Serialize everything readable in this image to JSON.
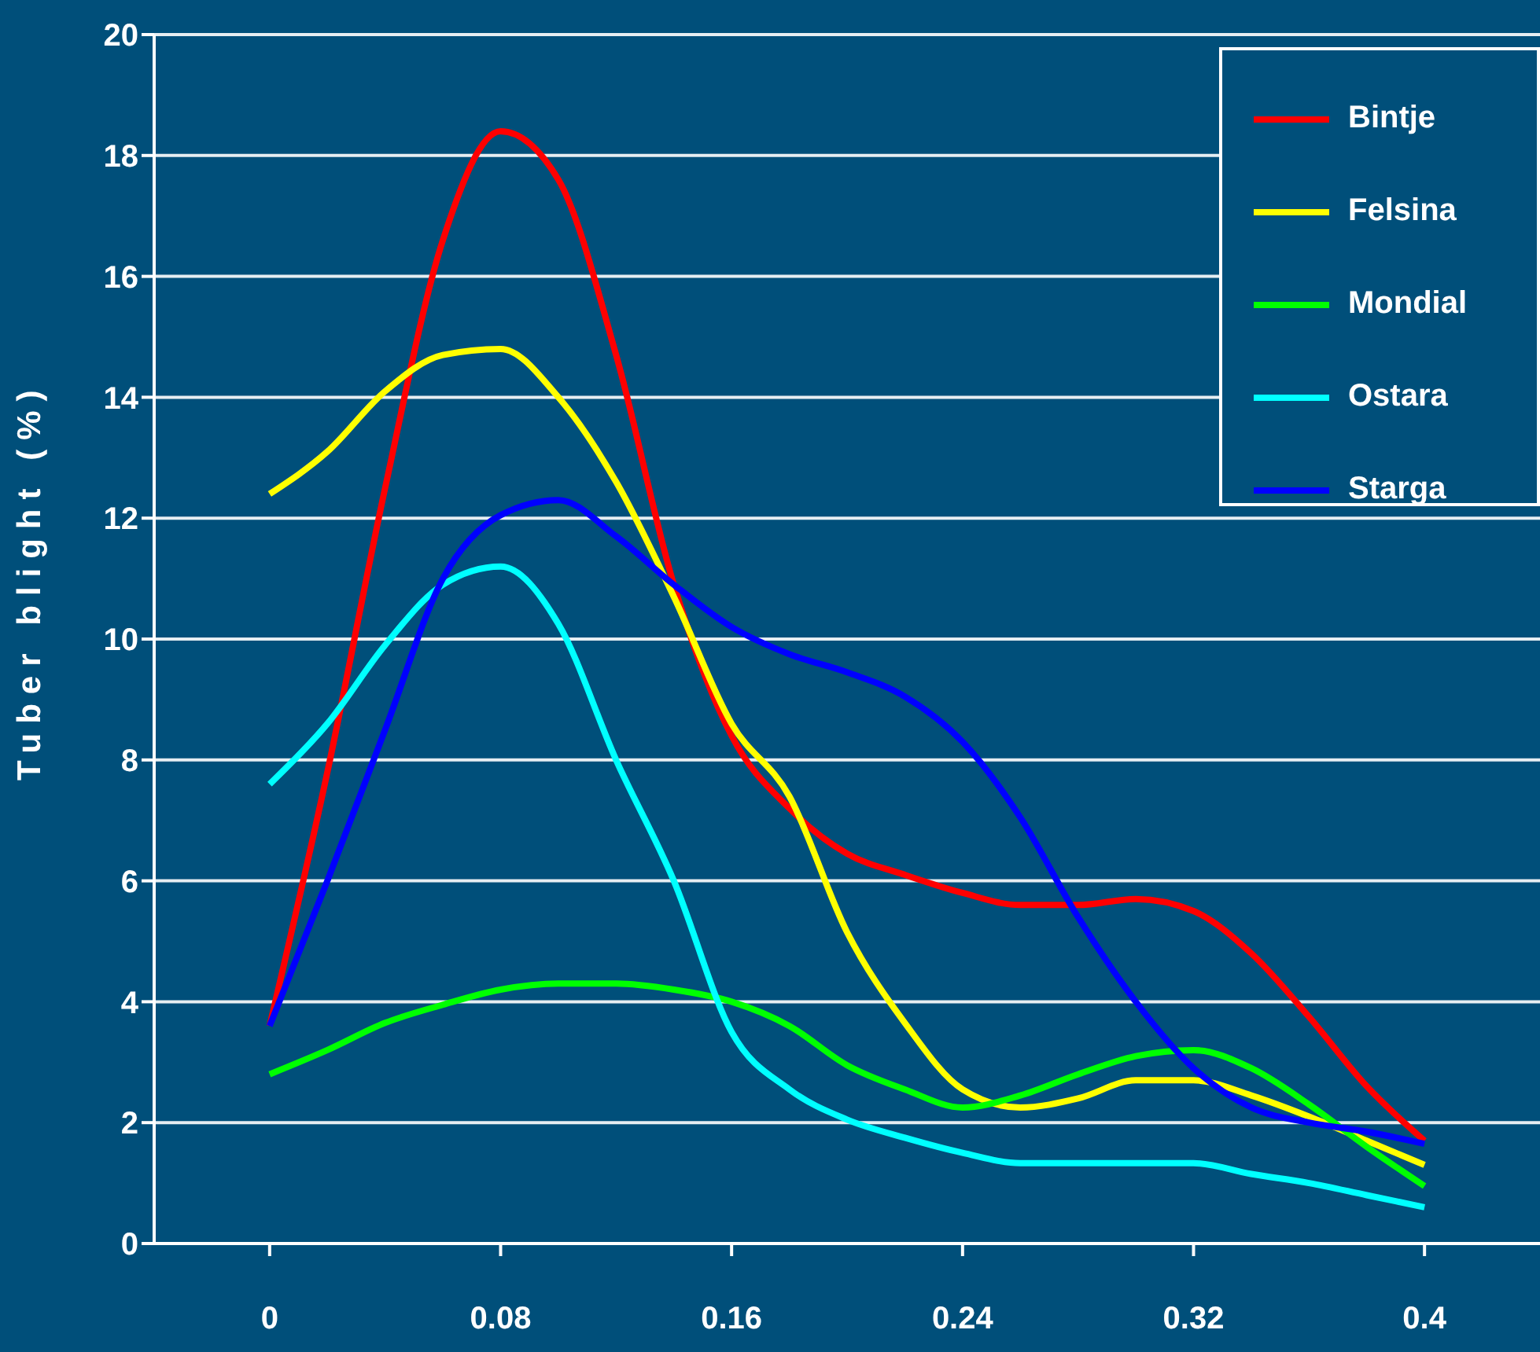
{
  "chart_data": {
    "type": "line",
    "ylabel": "Tuber blight (%)",
    "x": [
      0,
      0.02,
      0.04,
      0.06,
      0.08,
      0.1,
      0.12,
      0.14,
      0.16,
      0.18,
      0.2,
      0.22,
      0.24,
      0.26,
      0.28,
      0.3,
      0.32,
      0.34,
      0.36,
      0.38,
      0.4
    ],
    "xlim": [
      -0.04,
      0.44
    ],
    "xticks": [
      0,
      0.08,
      0.16,
      0.24,
      0.32,
      0.4
    ],
    "ylim": [
      0,
      20
    ],
    "yticks": [
      0,
      2,
      4,
      6,
      8,
      10,
      12,
      14,
      16,
      18,
      20
    ],
    "grid": "y",
    "legend": "top right",
    "marker": "none",
    "series": [
      {
        "name": "Bintje",
        "color": "#ff0000",
        "values": [
          3.6,
          7.8,
          12.5,
          16.6,
          18.4,
          17.6,
          14.7,
          10.9,
          8.4,
          7.2,
          6.45,
          6.1,
          5.8,
          5.6,
          5.6,
          5.7,
          5.5,
          4.8,
          3.75,
          2.6,
          1.7
        ]
      },
      {
        "name": "Felsina",
        "color": "#ffff00",
        "values": [
          12.4,
          13.1,
          14.1,
          14.7,
          14.8,
          14.0,
          12.6,
          10.7,
          8.6,
          7.4,
          5.15,
          3.65,
          2.55,
          2.25,
          2.4,
          2.7,
          2.7,
          2.45,
          2.1,
          1.7,
          1.3
        ]
      },
      {
        "name": "Mondial",
        "color": "#00ff00",
        "values": [
          2.8,
          3.2,
          3.65,
          3.95,
          4.2,
          4.3,
          4.3,
          4.2,
          4.0,
          3.6,
          2.95,
          2.55,
          2.25,
          2.45,
          2.8,
          3.1,
          3.2,
          2.9,
          2.3,
          1.6,
          0.95
        ]
      },
      {
        "name": "Ostara",
        "color": "#00ffff",
        "values": [
          7.6,
          8.6,
          9.9,
          10.9,
          11.2,
          10.25,
          8.0,
          6.0,
          3.5,
          2.55,
          2.05,
          1.75,
          1.5,
          1.33,
          1.33,
          1.33,
          1.33,
          1.15,
          1.0,
          0.8,
          0.6
        ]
      },
      {
        "name": "Starga",
        "color": "#0000ff",
        "values": [
          3.6,
          6.0,
          8.5,
          11.0,
          12.05,
          12.3,
          11.7,
          10.9,
          10.2,
          9.75,
          9.45,
          9.05,
          8.3,
          7.05,
          5.4,
          4.0,
          2.9,
          2.25,
          2.0,
          1.85,
          1.65
        ]
      }
    ]
  }
}
